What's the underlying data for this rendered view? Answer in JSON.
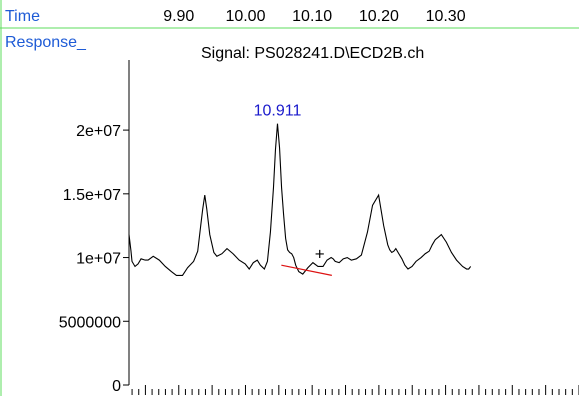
{
  "chart_data": {
    "type": "line",
    "time_label": "Time",
    "response_label": "Response_",
    "signal_title": "Signal: PS028241.D\\ECD2B.ch",
    "x_ticks": [
      "9.90",
      "10.00",
      "10.10",
      "10.20",
      "10.30"
    ],
    "x_tick_values": [
      9.9,
      10.0,
      10.1,
      10.2,
      10.3
    ],
    "xlim": [
      9.8254,
      10.5
    ],
    "y_ticks": [
      "0",
      "5000000",
      "1e+07",
      "1.5e+07",
      "2e+07"
    ],
    "y_tick_values": [
      0,
      5000000,
      10000000,
      15000000,
      20000000
    ],
    "ylim": [
      0,
      25500000
    ],
    "peak_label": "10.911",
    "peak_label_color": "#1a1acc",
    "frame_color": "#5dde5d",
    "header_text_color": "#1e5bd6",
    "trace_color": "#000000",
    "baseline_color": "#dd1111",
    "integration_marker": "+",
    "integration_marker_pos": [
      10.1113,
      10300000
    ],
    "baseline": [
      [
        10.0538,
        9400000
      ],
      [
        10.1295,
        8600000
      ]
    ],
    "series": [
      {
        "x": [
          9.8254,
          9.8284,
          9.8299,
          9.8344,
          9.839,
          9.8435,
          9.8496,
          9.8541,
          9.8617,
          9.8708,
          9.8798,
          9.8889,
          9.8965,
          9.9056,
          9.9132,
          9.9223,
          9.9284,
          9.9329,
          9.9359,
          9.939,
          9.942,
          9.9465,
          9.9526,
          9.9571,
          9.9647,
          9.9723,
          9.9814,
          9.9905,
          9.9996,
          10.0056,
          10.0117,
          10.0177,
          10.0223,
          10.0283,
          10.0329,
          10.0374,
          10.042,
          10.045,
          10.048,
          10.0511,
          10.0541,
          10.0571,
          10.0602,
          10.0632,
          10.0662,
          10.0693,
          10.0723,
          10.0753,
          10.0799,
          10.0859,
          10.0935,
          10.1011,
          10.1087,
          10.1163,
          10.1223,
          10.1284,
          10.1314,
          10.1345,
          10.1405,
          10.1466,
          10.1526,
          10.1587,
          10.1663,
          10.1738,
          10.1829,
          10.1905,
          10.1996,
          10.2072,
          10.2133,
          10.2163,
          10.2193,
          10.2224,
          10.2254,
          10.2299,
          10.2345,
          10.239,
          10.2436,
          10.2497,
          10.2557,
          10.2633,
          10.2694,
          10.2754,
          10.28,
          10.2845,
          10.2891,
          10.2936,
          10.3012,
          10.3088,
          10.3164,
          10.3255,
          10.3315,
          10.3346,
          10.3376
        ],
        "values": [
          11800000,
          10500000,
          9700000,
          9300000,
          9500000,
          9900000,
          9800000,
          9800000,
          10100000,
          9800000,
          9300000,
          8900000,
          8600000,
          8600000,
          9200000,
          9700000,
          10500000,
          12500000,
          13800000,
          14900000,
          13800000,
          11800000,
          10400000,
          10100000,
          10300000,
          10700000,
          10300000,
          9800000,
          9500000,
          9100000,
          9600000,
          9800000,
          9400000,
          9100000,
          9700000,
          12000000,
          15500000,
          18500000,
          20500000,
          18600000,
          15500000,
          13400000,
          11500000,
          10600000,
          10400000,
          10300000,
          10000000,
          9400000,
          8900000,
          8700000,
          9200000,
          9600000,
          9300000,
          9300000,
          9800000,
          10000000,
          9900000,
          9700000,
          9600000,
          9900000,
          10000000,
          9800000,
          9900000,
          10200000,
          12000000,
          14100000,
          14900000,
          12500000,
          11000000,
          10600000,
          10400000,
          10500000,
          10700000,
          10300000,
          9900000,
          9400000,
          9100000,
          9300000,
          9700000,
          10000000,
          10300000,
          10500000,
          11000000,
          11400000,
          11600000,
          11800000,
          11200000,
          10400000,
          9800000,
          9300000,
          9100000,
          9100000,
          9300000
        ]
      }
    ],
    "grid": false,
    "legend": "none"
  }
}
